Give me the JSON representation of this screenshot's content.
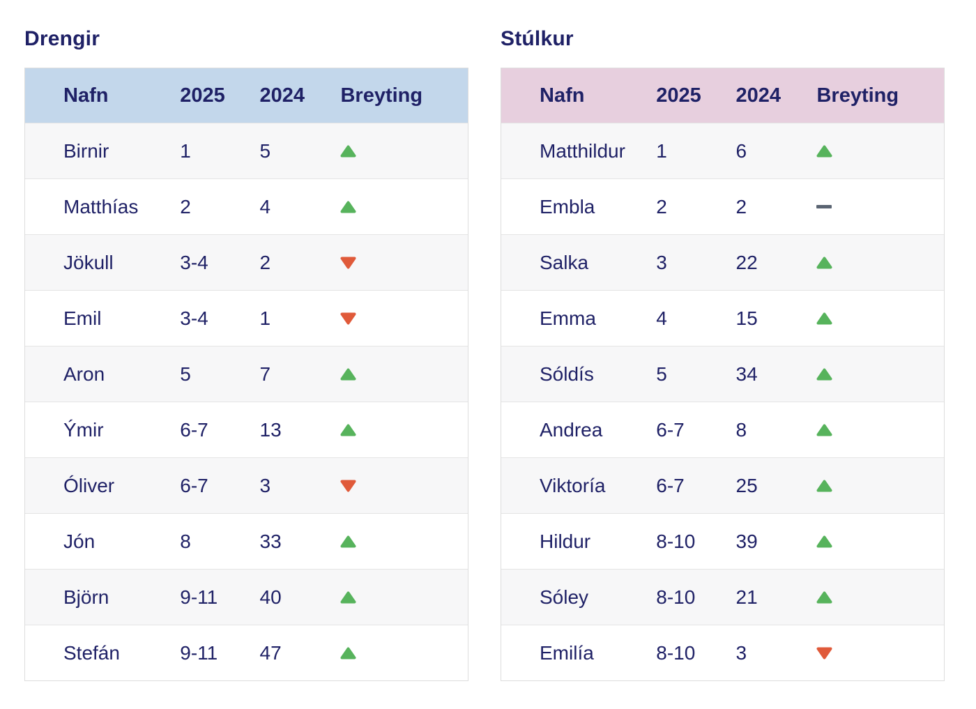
{
  "colors": {
    "text_navy": "#1f2166",
    "header_blue": "#c3d7eb",
    "header_pink": "#e7cfde",
    "row_alt_gray": "#f7f7f8",
    "row_white": "#ffffff",
    "table_border": "#dddddd",
    "up_green": "#57b35c",
    "down_red": "#e05a3a",
    "unchanged_gray": "#5a6472"
  },
  "tables": [
    {
      "title": "Drengir",
      "header_bg": "#c3d7eb",
      "columns": [
        "Nafn",
        "2025",
        "2024",
        "Breyting"
      ],
      "rows": [
        {
          "name": "Birnir",
          "y2025": "1",
          "y2024": "5",
          "change": "up"
        },
        {
          "name": "Matthías",
          "y2025": "2",
          "y2024": "4",
          "change": "up"
        },
        {
          "name": "Jökull",
          "y2025": "3-4",
          "y2024": "2",
          "change": "down"
        },
        {
          "name": "Emil",
          "y2025": "3-4",
          "y2024": "1",
          "change": "down"
        },
        {
          "name": "Aron",
          "y2025": "5",
          "y2024": "7",
          "change": "up"
        },
        {
          "name": "Ýmir",
          "y2025": "6-7",
          "y2024": "13",
          "change": "up"
        },
        {
          "name": "Óliver",
          "y2025": "6-7",
          "y2024": "3",
          "change": "down"
        },
        {
          "name": "Jón",
          "y2025": "8",
          "y2024": "33",
          "change": "up"
        },
        {
          "name": "Björn",
          "y2025": "9-11",
          "y2024": "40",
          "change": "up"
        },
        {
          "name": "Stefán",
          "y2025": "9-11",
          "y2024": "47",
          "change": "up"
        }
      ]
    },
    {
      "title": "Stúlkur",
      "header_bg": "#e7cfde",
      "columns": [
        "Nafn",
        "2025",
        "2024",
        "Breyting"
      ],
      "rows": [
        {
          "name": "Matthildur",
          "y2025": "1",
          "y2024": "6",
          "change": "up"
        },
        {
          "name": "Embla",
          "y2025": "2",
          "y2024": "2",
          "change": "same"
        },
        {
          "name": "Salka",
          "y2025": "3",
          "y2024": "22",
          "change": "up"
        },
        {
          "name": "Emma",
          "y2025": "4",
          "y2024": "15",
          "change": "up"
        },
        {
          "name": "Sóldís",
          "y2025": "5",
          "y2024": "34",
          "change": "up"
        },
        {
          "name": "Andrea",
          "y2025": "6-7",
          "y2024": "8",
          "change": "up"
        },
        {
          "name": "Viktoría",
          "y2025": "6-7",
          "y2024": "25",
          "change": "up"
        },
        {
          "name": "Hildur",
          "y2025": "8-10",
          "y2024": "39",
          "change": "up"
        },
        {
          "name": "Sóley",
          "y2025": "8-10",
          "y2024": "21",
          "change": "up"
        },
        {
          "name": "Emilía",
          "y2025": "8-10",
          "y2024": "3",
          "change": "down"
        }
      ]
    }
  ]
}
